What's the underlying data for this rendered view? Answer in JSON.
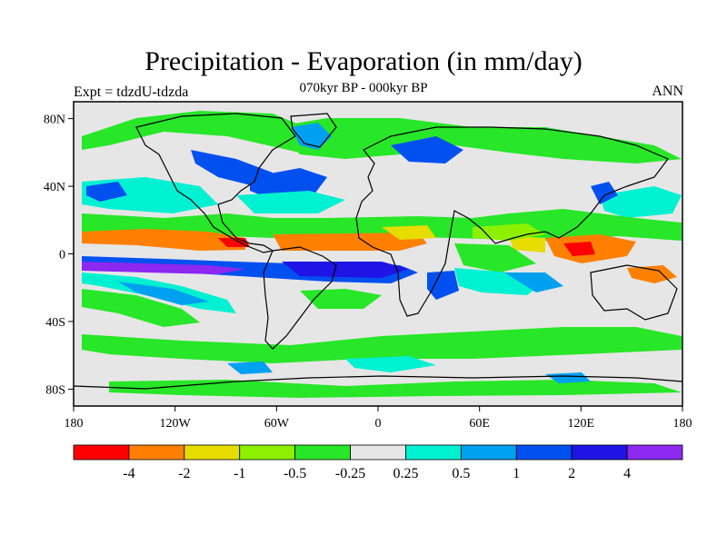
{
  "title": "Precipitation - Evaporation (in mm/day)",
  "left_label": "Expt = tdzdU-tdzda",
  "center_label": "070kyr BP - 000kyr BP",
  "right_label": "ANN",
  "map": {
    "lat_ticks": [
      {
        "value": 80,
        "label": "80N"
      },
      {
        "value": 40,
        "label": "40N"
      },
      {
        "value": 0,
        "label": "0"
      },
      {
        "value": -40,
        "label": "40S"
      },
      {
        "value": -80,
        "label": "80S"
      }
    ],
    "lon_ticks": [
      {
        "value": -180,
        "label": "180"
      },
      {
        "value": -120,
        "label": "120W"
      },
      {
        "value": -60,
        "label": "60W"
      },
      {
        "value": 0,
        "label": "0"
      },
      {
        "value": 60,
        "label": "60E"
      },
      {
        "value": 120,
        "label": "120E"
      },
      {
        "value": 180,
        "label": "180"
      }
    ],
    "background_color": "#e6e6e6"
  },
  "colorbar": {
    "colors": [
      "#ff0000",
      "#ff8000",
      "#e6dc00",
      "#8cf000",
      "#28e628",
      "#e6e6e6",
      "#00f0d2",
      "#00a0f0",
      "#0050f0",
      "#1e14e6",
      "#8c28f0"
    ],
    "labels": [
      "-4",
      "-2",
      "-1",
      "-0.5",
      "-0.25",
      "0.25",
      "0.5",
      "1",
      "2",
      "4"
    ]
  }
}
